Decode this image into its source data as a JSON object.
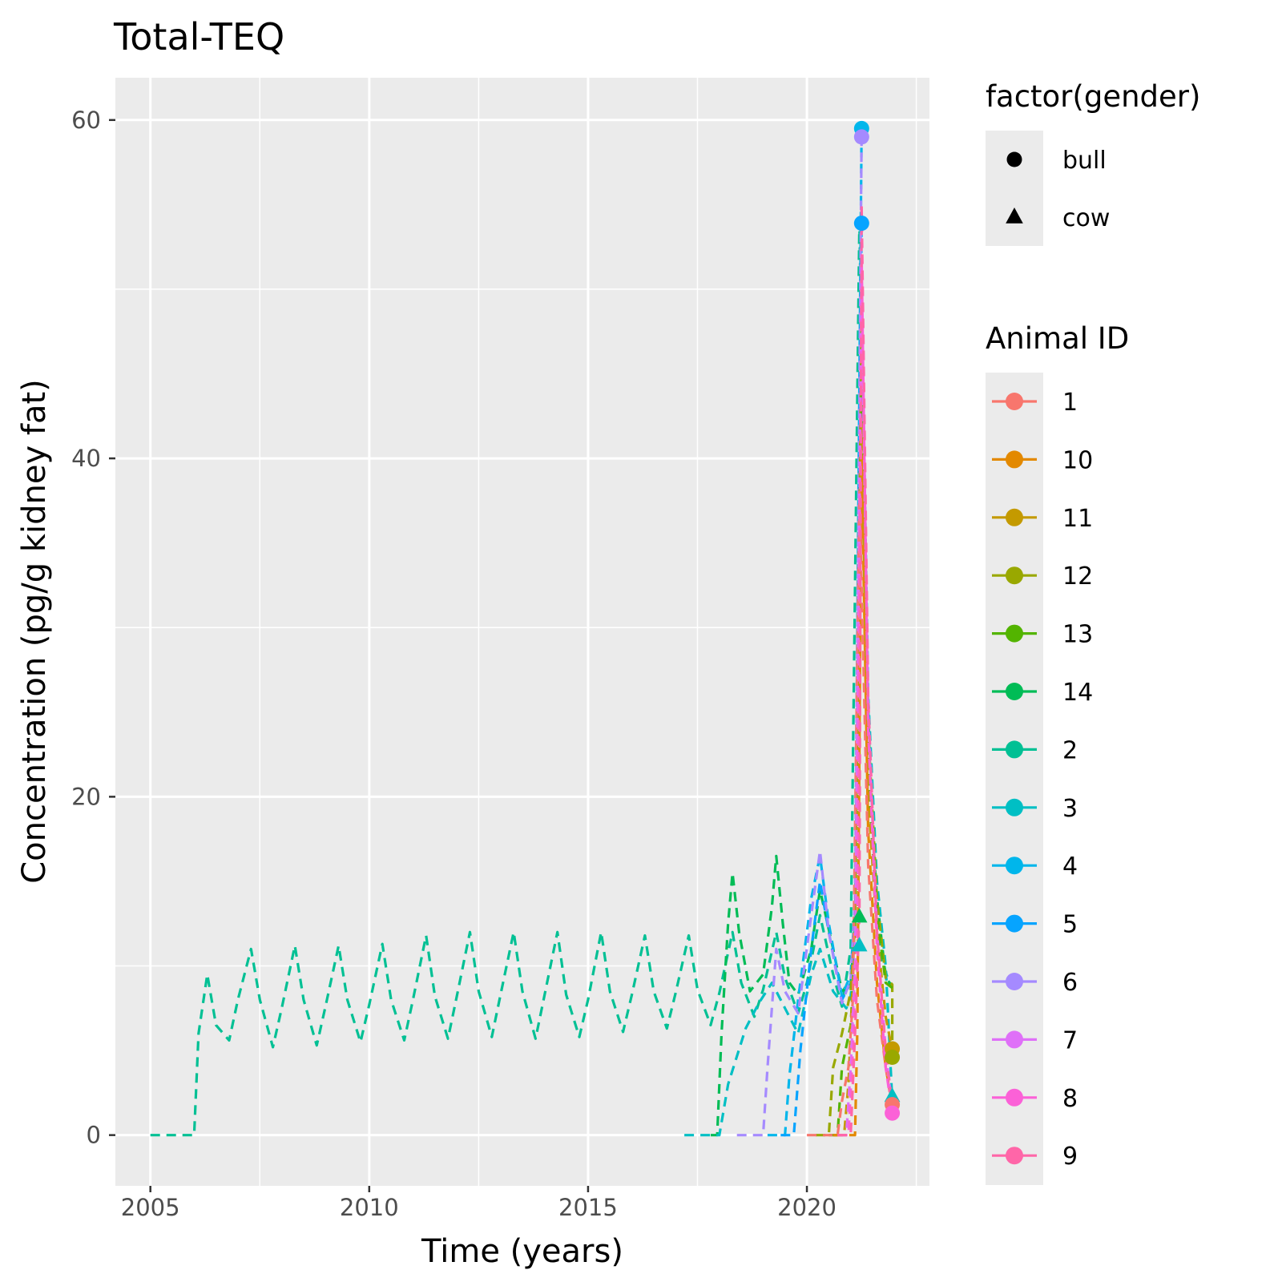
{
  "chart_data": {
    "type": "line",
    "title": "Total-TEQ",
    "xlabel": "Time (years)",
    "ylabel": "Concentration (pg/g kidney fat)",
    "xlim": [
      2004.2,
      2022.8
    ],
    "ylim": [
      -3,
      62.5
    ],
    "x_ticks": [
      2005,
      2010,
      2015,
      2020
    ],
    "x_tick_labels": [
      "2005",
      "2010",
      "2015",
      "2020"
    ],
    "y_ticks": [
      0,
      20,
      40,
      60
    ],
    "y_tick_labels": [
      "0",
      "20",
      "40",
      "60"
    ],
    "grid": true,
    "line_style": "dashed",
    "legend_position": "right",
    "shape_legend": {
      "title": "factor(gender)",
      "items": [
        {
          "label": "bull",
          "shape": "circle"
        },
        {
          "label": "cow",
          "shape": "triangle"
        }
      ]
    },
    "color_legend": {
      "title": "Animal ID",
      "items": [
        {
          "label": "1",
          "color": "#F8766D"
        },
        {
          "label": "10",
          "color": "#E38900"
        },
        {
          "label": "11",
          "color": "#C49A00"
        },
        {
          "label": "12",
          "color": "#99A800"
        },
        {
          "label": "13",
          "color": "#53B400"
        },
        {
          "label": "14",
          "color": "#00BC56"
        },
        {
          "label": "2",
          "color": "#00C094"
        },
        {
          "label": "3",
          "color": "#00BFC4"
        },
        {
          "label": "4",
          "color": "#00B6EB"
        },
        {
          "label": "5",
          "color": "#06A4FF"
        },
        {
          "label": "6",
          "color": "#A58AFF"
        },
        {
          "label": "7",
          "color": "#DF70F8"
        },
        {
          "label": "8",
          "color": "#FB61D7"
        },
        {
          "label": "9",
          "color": "#FF66A8"
        }
      ]
    },
    "series": [
      {
        "name": "2",
        "color": "#00C094",
        "points": [
          [
            2005.0,
            0
          ],
          [
            2006.0,
            0
          ],
          [
            2006.1,
            6
          ],
          [
            2006.3,
            9.5
          ],
          [
            2006.5,
            6.5
          ],
          [
            2006.8,
            5.6
          ],
          [
            2007.0,
            8
          ],
          [
            2007.3,
            11
          ],
          [
            2007.5,
            8
          ],
          [
            2007.8,
            5.2
          ],
          [
            2008.0,
            7.5
          ],
          [
            2008.3,
            11.2
          ],
          [
            2008.5,
            8
          ],
          [
            2008.8,
            5.3
          ],
          [
            2009.0,
            7.6
          ],
          [
            2009.3,
            11.2
          ],
          [
            2009.5,
            8
          ],
          [
            2009.8,
            5.5
          ],
          [
            2010.0,
            7.7
          ],
          [
            2010.3,
            11.3
          ],
          [
            2010.5,
            8
          ],
          [
            2010.8,
            5.6
          ],
          [
            2011.0,
            8
          ],
          [
            2011.3,
            11.8
          ],
          [
            2011.5,
            8.2
          ],
          [
            2011.8,
            5.7
          ],
          [
            2012.0,
            8.2
          ],
          [
            2012.3,
            12
          ],
          [
            2012.5,
            8.5
          ],
          [
            2012.8,
            5.8
          ],
          [
            2013.0,
            8.3
          ],
          [
            2013.3,
            12
          ],
          [
            2013.5,
            8.5
          ],
          [
            2013.8,
            5.7
          ],
          [
            2014.0,
            8.2
          ],
          [
            2014.3,
            12
          ],
          [
            2014.5,
            8.3
          ],
          [
            2014.8,
            5.8
          ],
          [
            2015.0,
            8
          ],
          [
            2015.3,
            12
          ],
          [
            2015.5,
            8.5
          ],
          [
            2015.8,
            6.1
          ],
          [
            2016.0,
            8.3
          ],
          [
            2016.3,
            11.8
          ],
          [
            2016.5,
            8.5
          ],
          [
            2016.8,
            6.3
          ],
          [
            2017.0,
            8.4
          ],
          [
            2017.3,
            11.8
          ],
          [
            2017.5,
            8.6
          ],
          [
            2017.8,
            6.5
          ],
          [
            2018.0,
            8.4
          ],
          [
            2018.3,
            12
          ],
          [
            2018.5,
            9
          ],
          [
            2018.8,
            7
          ],
          [
            2019.0,
            8.6
          ],
          [
            2019.3,
            12
          ],
          [
            2019.5,
            9.3
          ],
          [
            2019.8,
            7.2
          ],
          [
            2020.0,
            9
          ],
          [
            2020.3,
            13
          ],
          [
            2020.6,
            9.5
          ],
          [
            2020.8,
            7.6
          ],
          [
            2021.0,
            11
          ],
          [
            2021.2,
            54
          ],
          [
            2021.35,
            30
          ],
          [
            2021.5,
            16
          ],
          [
            2021.7,
            10.5
          ],
          [
            2021.9,
            8.8
          ]
        ]
      },
      {
        "name": "14",
        "color": "#00BC56",
        "points": [
          [
            2017.8,
            0
          ],
          [
            2017.95,
            0
          ],
          [
            2018.05,
            6
          ],
          [
            2018.2,
            12.5
          ],
          [
            2018.3,
            15.5
          ],
          [
            2018.45,
            12
          ],
          [
            2018.7,
            8.5
          ],
          [
            2019.0,
            9.5
          ],
          [
            2019.2,
            13.5
          ],
          [
            2019.3,
            16.5
          ],
          [
            2019.45,
            12.5
          ],
          [
            2019.6,
            9
          ],
          [
            2019.8,
            8.3
          ],
          [
            2020.1,
            11
          ],
          [
            2020.3,
            14.5
          ],
          [
            2020.6,
            11
          ],
          [
            2020.8,
            8.5
          ],
          [
            2021.0,
            9
          ],
          [
            2021.1,
            12.3
          ],
          [
            2021.25,
            46
          ],
          [
            2021.4,
            22
          ],
          [
            2021.6,
            14
          ],
          [
            2021.8,
            9.3
          ],
          [
            2021.95,
            8.8
          ]
        ]
      },
      {
        "name": "3",
        "color": "#00BFC4",
        "points": [
          [
            2017.2,
            0
          ],
          [
            2018.0,
            0
          ],
          [
            2018.2,
            3
          ],
          [
            2018.6,
            6.3
          ],
          [
            2018.9,
            7.8
          ],
          [
            2019.2,
            9
          ],
          [
            2019.5,
            7.5
          ],
          [
            2019.8,
            6
          ],
          [
            2020.1,
            9.5
          ],
          [
            2020.3,
            11
          ],
          [
            2020.6,
            8.5
          ],
          [
            2020.9,
            7.5
          ],
          [
            2021.0,
            8.2
          ],
          [
            2021.1,
            10.8
          ],
          [
            2021.25,
            50
          ],
          [
            2021.4,
            26
          ],
          [
            2021.6,
            15
          ],
          [
            2021.8,
            10
          ],
          [
            2021.95,
            2
          ]
        ]
      },
      {
        "name": "4",
        "color": "#00B6EB",
        "points": [
          [
            2019.1,
            0
          ],
          [
            2019.5,
            0
          ],
          [
            2019.6,
            3.5
          ],
          [
            2019.8,
            8
          ],
          [
            2020.1,
            14
          ],
          [
            2020.3,
            16.5
          ],
          [
            2020.5,
            12.5
          ],
          [
            2020.8,
            8.2
          ],
          [
            2021.0,
            9.5
          ],
          [
            2021.1,
            13.5
          ],
          [
            2021.25,
            59.5
          ]
        ]
      },
      {
        "name": "5",
        "color": "#06A4FF",
        "points": [
          [
            2019.4,
            0
          ],
          [
            2019.7,
            0
          ],
          [
            2019.85,
            5
          ],
          [
            2020.1,
            11
          ],
          [
            2020.3,
            15
          ],
          [
            2020.5,
            12
          ],
          [
            2020.8,
            8
          ],
          [
            2021.0,
            9
          ],
          [
            2021.1,
            13
          ],
          [
            2021.25,
            54
          ]
        ]
      },
      {
        "name": "6",
        "color": "#A58AFF",
        "points": [
          [
            2018.4,
            0
          ],
          [
            2019.0,
            0
          ],
          [
            2019.1,
            4
          ],
          [
            2019.3,
            11
          ],
          [
            2019.5,
            8.5
          ],
          [
            2019.8,
            7.2
          ],
          [
            2020.1,
            13
          ],
          [
            2020.3,
            16.8
          ],
          [
            2020.5,
            12
          ],
          [
            2020.8,
            7.8
          ],
          [
            2021.0,
            9.2
          ],
          [
            2021.1,
            14
          ],
          [
            2021.25,
            59
          ]
        ]
      },
      {
        "name": "12",
        "color": "#99A800",
        "points": [
          [
            2020.2,
            0
          ],
          [
            2020.5,
            0
          ],
          [
            2020.6,
            4
          ],
          [
            2020.8,
            6
          ],
          [
            2021.0,
            8.5
          ],
          [
            2021.1,
            12.5
          ],
          [
            2021.25,
            48
          ],
          [
            2021.4,
            24
          ],
          [
            2021.6,
            14
          ],
          [
            2021.8,
            9.3
          ],
          [
            2021.95,
            8.9
          ],
          [
            2021.95,
            4.5
          ]
        ]
      },
      {
        "name": "13",
        "color": "#53B400",
        "points": [
          [
            2020.5,
            0
          ],
          [
            2020.7,
            0
          ],
          [
            2020.8,
            4
          ],
          [
            2021.0,
            6.5
          ],
          [
            2021.1,
            11
          ],
          [
            2021.25,
            44
          ],
          [
            2021.4,
            21
          ],
          [
            2021.6,
            13
          ],
          [
            2021.8,
            9
          ],
          [
            2021.95,
            8.7
          ]
        ]
      },
      {
        "name": "11",
        "color": "#C49A00",
        "points": [
          [
            2020.6,
            0
          ],
          [
            2020.85,
            0
          ],
          [
            2020.95,
            3
          ],
          [
            2021.05,
            9
          ],
          [
            2021.15,
            14
          ],
          [
            2021.25,
            42
          ],
          [
            2021.4,
            20
          ],
          [
            2021.6,
            12
          ],
          [
            2021.8,
            7
          ],
          [
            2021.95,
            5
          ]
        ]
      },
      {
        "name": "10",
        "color": "#E38900",
        "points": [
          [
            2020.6,
            0
          ],
          [
            2021.1,
            0
          ],
          [
            2021.15,
            6
          ],
          [
            2021.25,
            40
          ],
          [
            2021.4,
            18
          ],
          [
            2021.6,
            9
          ],
          [
            2021.8,
            4
          ],
          [
            2021.95,
            1.8
          ]
        ]
      },
      {
        "name": "1",
        "color": "#F8766D",
        "points": [
          [
            2020.0,
            0
          ],
          [
            2020.7,
            0
          ],
          [
            2020.8,
            2
          ],
          [
            2020.95,
            4
          ],
          [
            2021.05,
            8
          ],
          [
            2021.2,
            38
          ],
          [
            2021.4,
            16
          ],
          [
            2021.6,
            8
          ],
          [
            2021.8,
            4
          ],
          [
            2021.95,
            1.6
          ]
        ]
      },
      {
        "name": "7",
        "color": "#DF70F8",
        "points": [
          [
            2020.7,
            0
          ],
          [
            2020.9,
            0
          ],
          [
            2021.0,
            4
          ],
          [
            2021.1,
            10
          ],
          [
            2021.25,
            50
          ],
          [
            2021.4,
            25
          ],
          [
            2021.6,
            12
          ],
          [
            2021.8,
            5
          ],
          [
            2021.95,
            1.5
          ]
        ]
      },
      {
        "name": "8",
        "color": "#FB61D7",
        "points": [
          [
            2020.7,
            0
          ],
          [
            2020.95,
            0
          ],
          [
            2021.05,
            5
          ],
          [
            2021.15,
            12
          ],
          [
            2021.25,
            52
          ],
          [
            2021.4,
            24
          ],
          [
            2021.6,
            11
          ],
          [
            2021.8,
            4
          ],
          [
            2021.95,
            1.3
          ]
        ]
      },
      {
        "name": "9",
        "color": "#FF66A8",
        "points": [
          [
            2020.7,
            0
          ],
          [
            2021.0,
            0
          ],
          [
            2021.1,
            6
          ],
          [
            2021.2,
            13
          ],
          [
            2021.25,
            55
          ],
          [
            2021.4,
            26
          ],
          [
            2021.6,
            12
          ],
          [
            2021.8,
            5
          ],
          [
            2021.95,
            1.8
          ]
        ]
      }
    ],
    "markers": [
      {
        "series": "4",
        "shape": "circle",
        "x": 2021.25,
        "y": 59.5,
        "color": "#00B6EB"
      },
      {
        "series": "6",
        "shape": "circle",
        "x": 2021.25,
        "y": 59.0,
        "color": "#A58AFF"
      },
      {
        "series": "5",
        "shape": "circle",
        "x": 2021.25,
        "y": 53.9,
        "color": "#06A4FF"
      },
      {
        "series": "14",
        "shape": "triangle",
        "x": 2021.2,
        "y": 12.9,
        "color": "#00BC56"
      },
      {
        "series": "3",
        "shape": "triangle",
        "x": 2021.2,
        "y": 11.2,
        "color": "#00BFC4"
      },
      {
        "series": "11",
        "shape": "circle",
        "x": 2021.95,
        "y": 5.1,
        "color": "#C49A00"
      },
      {
        "series": "12",
        "shape": "circle",
        "x": 2021.95,
        "y": 4.6,
        "color": "#99A800"
      },
      {
        "series": "3",
        "shape": "triangle",
        "x": 2021.95,
        "y": 2.3,
        "color": "#00BFC4"
      },
      {
        "series": "1",
        "shape": "circle",
        "x": 2021.95,
        "y": 1.8,
        "color": "#F8766D"
      },
      {
        "series": "8",
        "shape": "circle",
        "x": 2021.95,
        "y": 1.3,
        "color": "#FB61D7"
      }
    ]
  }
}
